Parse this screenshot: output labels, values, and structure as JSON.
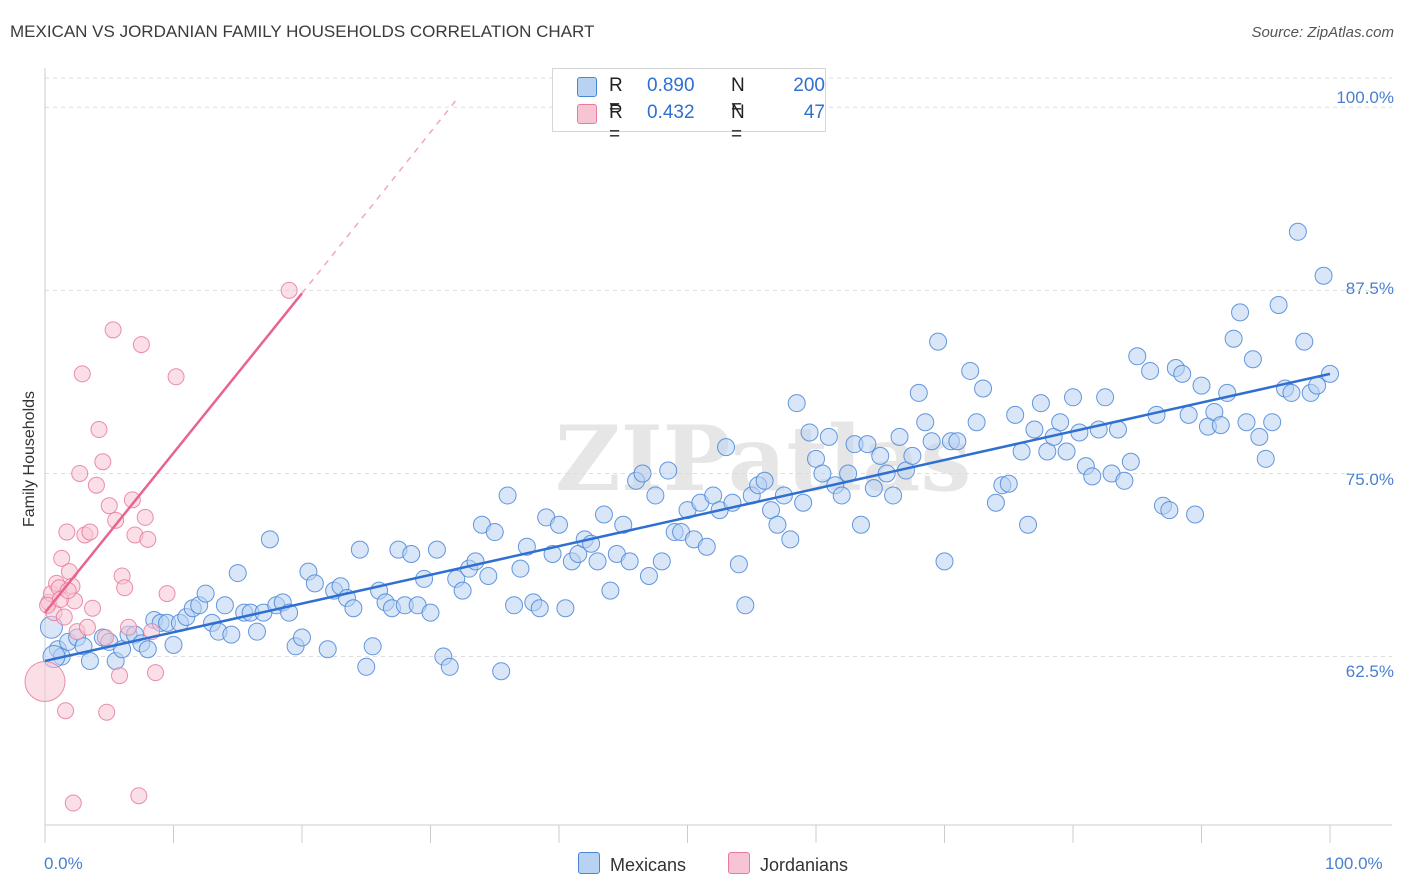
{
  "title": "MEXICAN VS JORDANIAN FAMILY HOUSEHOLDS CORRELATION CHART",
  "source": "Source: ZipAtlas.com",
  "watermark": "ZIPatlas",
  "colors": {
    "blue": "#4a86d8",
    "blue_fill": "#b8d2f3",
    "blue_line": "#2f6fd0",
    "pink": "#e87a9f",
    "pink_fill": "#f7c4d4",
    "pink_line": "#e8648f",
    "axis_label": "#4a7fcf",
    "grid": "#dddddd"
  },
  "legend": {
    "rows": [
      {
        "r_label": "R =",
        "r_value": "0.890",
        "n_label": "N =",
        "n_value": "200"
      },
      {
        "r_label": "R =",
        "r_value": "0.432",
        "n_label": "N =",
        "n_value": "47"
      }
    ]
  },
  "bottom_legend": [
    "Mexicans",
    "Jordanians"
  ],
  "chart_data": {
    "type": "scatter",
    "title": "MEXICAN VS JORDANIAN FAMILY HOUSEHOLDS CORRELATION CHART",
    "xlabel": "",
    "ylabel": "Family Households",
    "xlim": [
      0,
      100
    ],
    "ylim": [
      51,
      102
    ],
    "x_tick_labels": [
      "0.0%",
      "100.0%"
    ],
    "y_ticks": [
      62.5,
      75.0,
      87.5,
      100.0
    ],
    "y_tick_labels": [
      "62.5%",
      "75.0%",
      "87.5%",
      "100.0%"
    ],
    "grid": true,
    "legend_position": "top-center",
    "series": [
      {
        "name": "Mexicans",
        "R": 0.89,
        "N": 200,
        "trend": {
          "x0": 0,
          "y0": 62.2,
          "x1": 100,
          "y1": 81.8
        },
        "points": [
          [
            0.5,
            64.5
          ],
          [
            1,
            63
          ],
          [
            1.3,
            62.5
          ],
          [
            1.8,
            63.5
          ],
          [
            2.5,
            63.8
          ],
          [
            3,
            63.2
          ],
          [
            3.5,
            62.2
          ],
          [
            4.5,
            63.8
          ],
          [
            5,
            63.5
          ],
          [
            5.5,
            62.2
          ],
          [
            6,
            63
          ],
          [
            6.5,
            64
          ],
          [
            7,
            64
          ],
          [
            7.5,
            63.4
          ],
          [
            8,
            63
          ],
          [
            8.5,
            65
          ],
          [
            9,
            64.8
          ],
          [
            9.5,
            64.8
          ],
          [
            10,
            63.3
          ],
          [
            10.5,
            64.8
          ],
          [
            11,
            65.2
          ],
          [
            11.5,
            65.8
          ],
          [
            12,
            66
          ],
          [
            12.5,
            66.8
          ],
          [
            13,
            64.8
          ],
          [
            13.5,
            64.2
          ],
          [
            14,
            66
          ],
          [
            14.5,
            64
          ],
          [
            15,
            68.2
          ],
          [
            15.5,
            65.5
          ],
          [
            16,
            65.5
          ],
          [
            16.5,
            64.2
          ],
          [
            17,
            65.5
          ],
          [
            17.5,
            70.5
          ],
          [
            18,
            66
          ],
          [
            18.5,
            66.2
          ],
          [
            19,
            65.5
          ],
          [
            19.5,
            63.2
          ],
          [
            20,
            63.8
          ],
          [
            20.5,
            68.3
          ],
          [
            21,
            67.5
          ],
          [
            22,
            63
          ],
          [
            22.5,
            67
          ],
          [
            23,
            67.3
          ],
          [
            23.5,
            66.5
          ],
          [
            24,
            65.8
          ],
          [
            24.5,
            69.8
          ],
          [
            25,
            61.8
          ],
          [
            25.5,
            63.2
          ],
          [
            26,
            67
          ],
          [
            26.5,
            66.2
          ],
          [
            27,
            65.8
          ],
          [
            27.5,
            69.8
          ],
          [
            28,
            66
          ],
          [
            28.5,
            69.5
          ],
          [
            29,
            66
          ],
          [
            29.5,
            67.8
          ],
          [
            30,
            65.5
          ],
          [
            30.5,
            69.8
          ],
          [
            31,
            62.5
          ],
          [
            31.5,
            61.8
          ],
          [
            32,
            67.8
          ],
          [
            32.5,
            67
          ],
          [
            33,
            68.5
          ],
          [
            33.5,
            69
          ],
          [
            34,
            71.5
          ],
          [
            34.5,
            68
          ],
          [
            35,
            71
          ],
          [
            35.5,
            61.5
          ],
          [
            36,
            73.5
          ],
          [
            36.5,
            66
          ],
          [
            37,
            68.5
          ],
          [
            37.5,
            70
          ],
          [
            38,
            66.2
          ],
          [
            38.5,
            65.8
          ],
          [
            39,
            72
          ],
          [
            39.5,
            69.5
          ],
          [
            40,
            71.5
          ],
          [
            40.5,
            65.8
          ],
          [
            41,
            69
          ],
          [
            41.5,
            69.5
          ],
          [
            42,
            70.5
          ],
          [
            42.5,
            70.2
          ],
          [
            43,
            69
          ],
          [
            43.5,
            72.2
          ],
          [
            44,
            67
          ],
          [
            44.5,
            69.5
          ],
          [
            45,
            71.5
          ],
          [
            45.5,
            69
          ],
          [
            46,
            74.5
          ],
          [
            46.5,
            75
          ],
          [
            47,
            68
          ],
          [
            47.5,
            73.5
          ],
          [
            48,
            69
          ],
          [
            48.5,
            75.2
          ],
          [
            49,
            71
          ],
          [
            49.5,
            71
          ],
          [
            50,
            72.5
          ],
          [
            50.5,
            70.5
          ],
          [
            51,
            73
          ],
          [
            51.5,
            70
          ],
          [
            52,
            73.5
          ],
          [
            52.5,
            72.5
          ],
          [
            53,
            76.8
          ],
          [
            53.5,
            73
          ],
          [
            54,
            68.8
          ],
          [
            54.5,
            66
          ],
          [
            55,
            73.5
          ],
          [
            55.5,
            74.2
          ],
          [
            56,
            74.5
          ],
          [
            56.5,
            72.5
          ],
          [
            57,
            71.5
          ],
          [
            57.5,
            73.5
          ],
          [
            58,
            70.5
          ],
          [
            58.5,
            79.8
          ],
          [
            59,
            73
          ],
          [
            59.5,
            77.8
          ],
          [
            60,
            76
          ],
          [
            60.5,
            75
          ],
          [
            61,
            77.5
          ],
          [
            61.5,
            74.2
          ],
          [
            62,
            73.5
          ],
          [
            62.5,
            75
          ],
          [
            63,
            77
          ],
          [
            63.5,
            71.5
          ],
          [
            64,
            77
          ],
          [
            64.5,
            74
          ],
          [
            65,
            76.2
          ],
          [
            65.5,
            75
          ],
          [
            66,
            73.5
          ],
          [
            66.5,
            77.5
          ],
          [
            67,
            75.2
          ],
          [
            67.5,
            76.2
          ],
          [
            68,
            80.5
          ],
          [
            68.5,
            78.5
          ],
          [
            69,
            77.2
          ],
          [
            69.5,
            84
          ],
          [
            70,
            69
          ],
          [
            70.5,
            77.2
          ],
          [
            71,
            77.2
          ],
          [
            72,
            82
          ],
          [
            72.5,
            78.5
          ],
          [
            73,
            80.8
          ],
          [
            74,
            73
          ],
          [
            74.5,
            74.2
          ],
          [
            75,
            74.3
          ],
          [
            75.5,
            79
          ],
          [
            76,
            76.5
          ],
          [
            76.5,
            71.5
          ],
          [
            77,
            78
          ],
          [
            77.5,
            79.8
          ],
          [
            78,
            76.5
          ],
          [
            78.5,
            77.5
          ],
          [
            79,
            78.5
          ],
          [
            79.5,
            76.5
          ],
          [
            80,
            80.2
          ],
          [
            80.5,
            77.8
          ],
          [
            81,
            75.5
          ],
          [
            81.5,
            74.8
          ],
          [
            82,
            78
          ],
          [
            82.5,
            80.2
          ],
          [
            83,
            75
          ],
          [
            83.5,
            78
          ],
          [
            84,
            74.5
          ],
          [
            84.5,
            75.8
          ],
          [
            85,
            83
          ],
          [
            86,
            82
          ],
          [
            86.5,
            79
          ],
          [
            87,
            72.8
          ],
          [
            87.5,
            72.5
          ],
          [
            88,
            82.2
          ],
          [
            88.5,
            81.8
          ],
          [
            89,
            79
          ],
          [
            89.5,
            72.2
          ],
          [
            90,
            81
          ],
          [
            90.5,
            78.2
          ],
          [
            91,
            79.2
          ],
          [
            91.5,
            78.3
          ],
          [
            92,
            80.5
          ],
          [
            92.5,
            84.2
          ],
          [
            93,
            86
          ],
          [
            93.5,
            78.5
          ],
          [
            94,
            82.8
          ],
          [
            94.5,
            77.5
          ],
          [
            95,
            76
          ],
          [
            95.5,
            78.5
          ],
          [
            96,
            86.5
          ],
          [
            96.5,
            80.8
          ],
          [
            97,
            80.5
          ],
          [
            97.5,
            91.5
          ],
          [
            98,
            84
          ],
          [
            98.5,
            80.5
          ],
          [
            99,
            81
          ],
          [
            99.5,
            88.5
          ],
          [
            100,
            81.8
          ],
          [
            0.7,
            62.5
          ]
        ]
      },
      {
        "name": "Jordanians",
        "R": 0.432,
        "N": 47,
        "trend": {
          "x0": 0,
          "y0": 65.5,
          "x1": 20,
          "y1": 87.3,
          "dash_to_x": 32,
          "dash_to_y": 100.5
        },
        "points": [
          [
            0,
            60.8
          ],
          [
            0.3,
            66.2
          ],
          [
            0.5,
            66.8
          ],
          [
            0.7,
            65.5
          ],
          [
            0.9,
            67.5
          ],
          [
            1.1,
            67.2
          ],
          [
            1.3,
            69.2
          ],
          [
            1.5,
            65.2
          ],
          [
            1.7,
            71
          ],
          [
            1.9,
            68.3
          ],
          [
            2.1,
            67.3
          ],
          [
            2.3,
            66.3
          ],
          [
            2.5,
            64.2
          ],
          [
            2.7,
            75
          ],
          [
            2.9,
            81.8
          ],
          [
            3.1,
            70.8
          ],
          [
            3.3,
            64.5
          ],
          [
            3.5,
            71
          ],
          [
            3.7,
            65.8
          ],
          [
            4,
            74.2
          ],
          [
            4.2,
            78
          ],
          [
            4.5,
            75.8
          ],
          [
            4.7,
            63.8
          ],
          [
            5,
            72.8
          ],
          [
            5.3,
            84.8
          ],
          [
            5.5,
            71.8
          ],
          [
            5.8,
            61.2
          ],
          [
            6,
            68
          ],
          [
            6.2,
            67.2
          ],
          [
            6.5,
            64.5
          ],
          [
            6.8,
            73.2
          ],
          [
            7,
            70.8
          ],
          [
            7.3,
            53
          ],
          [
            7.5,
            83.8
          ],
          [
            7.8,
            72
          ],
          [
            8,
            70.5
          ],
          [
            8.3,
            64.2
          ],
          [
            8.6,
            61.4
          ],
          [
            9.5,
            66.8
          ],
          [
            10.2,
            81.6
          ],
          [
            1.6,
            58.8
          ],
          [
            2.2,
            52.5
          ],
          [
            4.8,
            58.7
          ],
          [
            19,
            87.5
          ],
          [
            0.2,
            66
          ],
          [
            1.2,
            66.4
          ],
          [
            1.8,
            67
          ]
        ]
      }
    ]
  }
}
